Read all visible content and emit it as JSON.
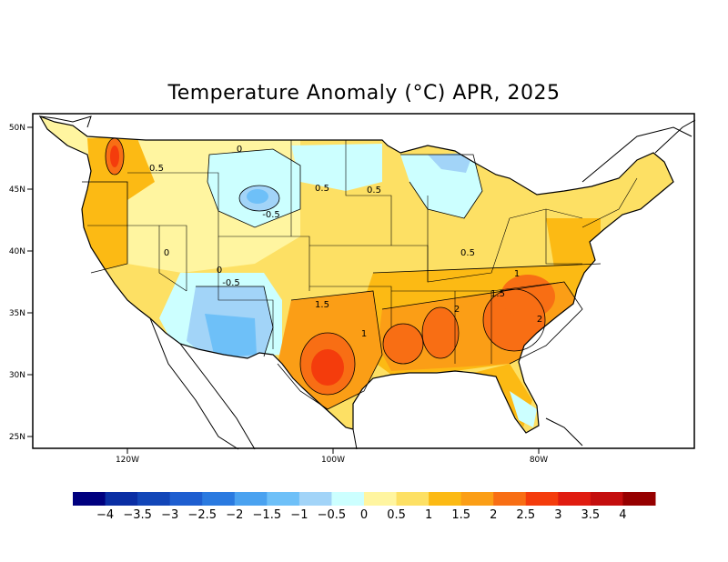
{
  "title": "Temperature Anomaly (°C) APR, 2025",
  "axes": {
    "y_ticks": [
      "50N",
      "45N",
      "40N",
      "35N",
      "30N",
      "25N"
    ],
    "x_ticks": [
      "120W",
      "100W",
      "80W"
    ]
  },
  "contour_labels": [
    "0",
    "0.5",
    "0.5",
    "0.5",
    "-0.5",
    "0",
    "0",
    "-0.5",
    "1.5",
    "1",
    "0.5",
    "1",
    "1.5",
    "2",
    "2"
  ],
  "colorbar": {
    "colors": [
      "#00007f",
      "#0a2ea4",
      "#1246b8",
      "#1e5ed0",
      "#2a7ae0",
      "#4aa2f0",
      "#6ec0f8",
      "#a2d4f8",
      "#ccffff",
      "#fff5a0",
      "#fde064",
      "#fcba14",
      "#fb9e16",
      "#f86e14",
      "#f43c0c",
      "#e01c10",
      "#c40e0e",
      "#960000"
    ],
    "labels": [
      "−4",
      "−3.5",
      "−3",
      "−2.5",
      "−2",
      "−1.5",
      "−1",
      "−0.5",
      "0",
      "0.5",
      "1",
      "1.5",
      "2",
      "2.5",
      "3",
      "3.5",
      "4"
    ]
  },
  "colors": {
    "near_zero_pos": "#fff5a0",
    "light_yellow": "#fde064",
    "orange": "#fcba14",
    "dark_orange": "#fb9e16",
    "red_orange": "#f86e14",
    "red": "#f43c0c",
    "light_blue": "#ccffff",
    "blue": "#a2d4f8",
    "mid_blue": "#6ec0f8"
  }
}
